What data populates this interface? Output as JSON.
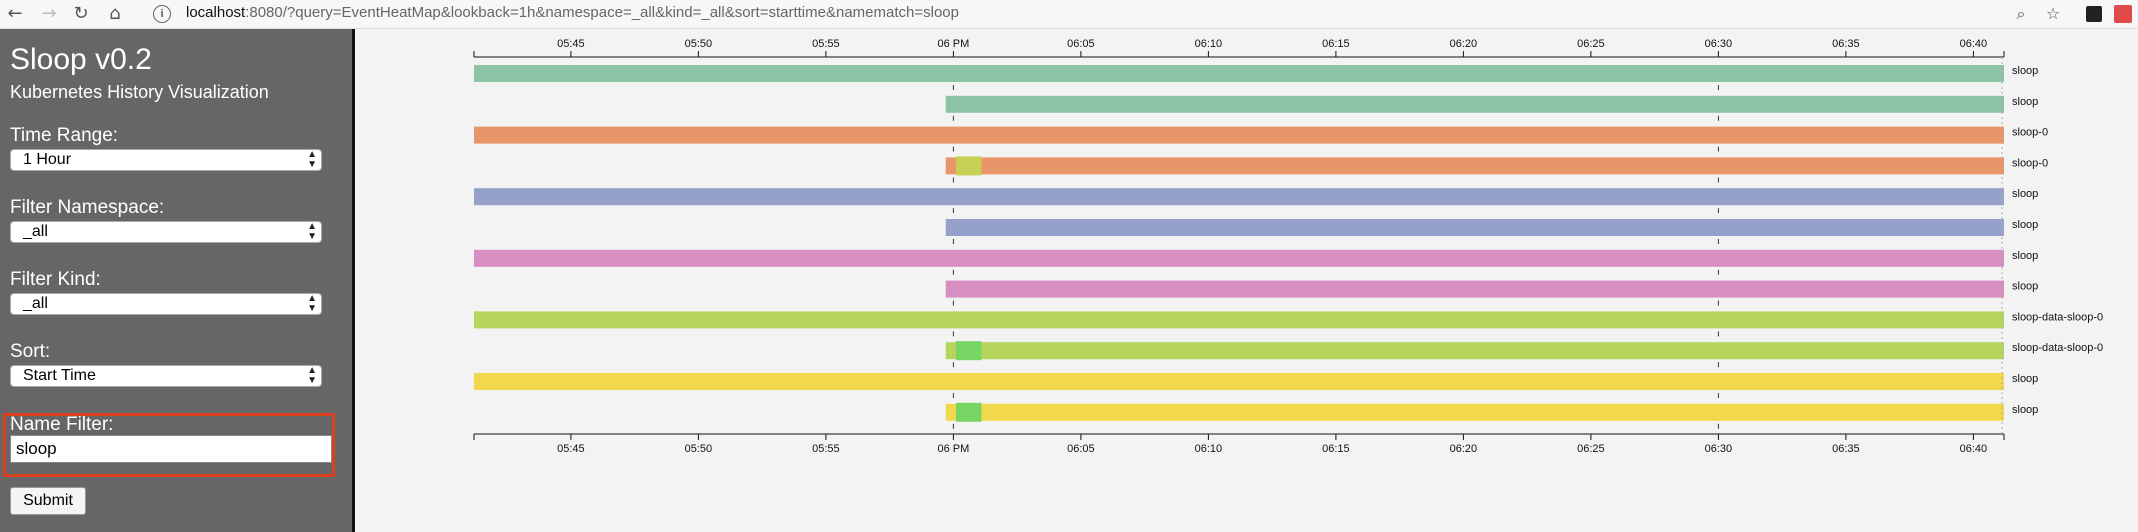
{
  "browser": {
    "url_host": "localhost",
    "url_rest": ":8080/?query=EventHeatMap&lookback=1h&namespace=_all&kind=_all&sort=starttime&namematch=sloop"
  },
  "sidebar": {
    "title": "Sloop v0.2",
    "subtitle": "Kubernetes History Visualization",
    "time_range": {
      "label": "Time Range:",
      "value": "1 Hour"
    },
    "namespace": {
      "label": "Filter Namespace:",
      "value": "_all"
    },
    "kind": {
      "label": "Filter Kind:",
      "value": "_all"
    },
    "sort": {
      "label": "Sort:",
      "value": "Start Time"
    },
    "name_filter": {
      "label": "Name Filter:",
      "value": "sloop"
    },
    "submit_label": "Submit"
  },
  "timeline": {
    "ticks": [
      "05:45",
      "05:50",
      "05:55",
      "06 PM",
      "06:05",
      "06:10",
      "06:15",
      "06:20",
      "06:25",
      "06:30",
      "06:35",
      "06:40"
    ],
    "time_start_min": 41.2,
    "time_end_min": 101.2,
    "rows": [
      {
        "label": "sloop",
        "color": "#8dc4a7",
        "start_min": 41.2,
        "end_min": 101.2,
        "events": []
      },
      {
        "label": "sloop",
        "color": "#8dc4a7",
        "start_min": 59.7,
        "end_min": 101.2,
        "events": []
      },
      {
        "label": "sloop-0",
        "color": "#e8956a",
        "start_min": 41.2,
        "end_min": 101.2,
        "events": []
      },
      {
        "label": "sloop-0",
        "color": "#e8956a",
        "start_min": 59.7,
        "end_min": 101.2,
        "events": [
          {
            "start_min": 60.1,
            "end_min": 61.1,
            "color": "#c8cf55"
          }
        ]
      },
      {
        "label": "sloop",
        "color": "#95a0cb",
        "start_min": 41.2,
        "end_min": 101.2,
        "events": []
      },
      {
        "label": "sloop",
        "color": "#95a0cb",
        "start_min": 59.7,
        "end_min": 101.2,
        "events": []
      },
      {
        "label": "sloop",
        "color": "#d78fc2",
        "start_min": 41.2,
        "end_min": 101.2,
        "events": []
      },
      {
        "label": "sloop",
        "color": "#d78fc2",
        "start_min": 59.7,
        "end_min": 101.2,
        "events": []
      },
      {
        "label": "sloop-data-sloop-0",
        "color": "#b5d55c",
        "start_min": 41.2,
        "end_min": 101.2,
        "events": []
      },
      {
        "label": "sloop-data-sloop-0",
        "color": "#b5d55c",
        "start_min": 59.7,
        "end_min": 101.2,
        "events": [
          {
            "start_min": 60.1,
            "end_min": 61.1,
            "color": "#79d563"
          }
        ]
      },
      {
        "label": "sloop",
        "color": "#f2d84c",
        "start_min": 41.2,
        "end_min": 101.2,
        "events": []
      },
      {
        "label": "sloop",
        "color": "#f2d84c",
        "start_min": 59.7,
        "end_min": 101.2,
        "events": [
          {
            "start_min": 60.1,
            "end_min": 61.1,
            "color": "#79d563"
          }
        ]
      }
    ]
  }
}
